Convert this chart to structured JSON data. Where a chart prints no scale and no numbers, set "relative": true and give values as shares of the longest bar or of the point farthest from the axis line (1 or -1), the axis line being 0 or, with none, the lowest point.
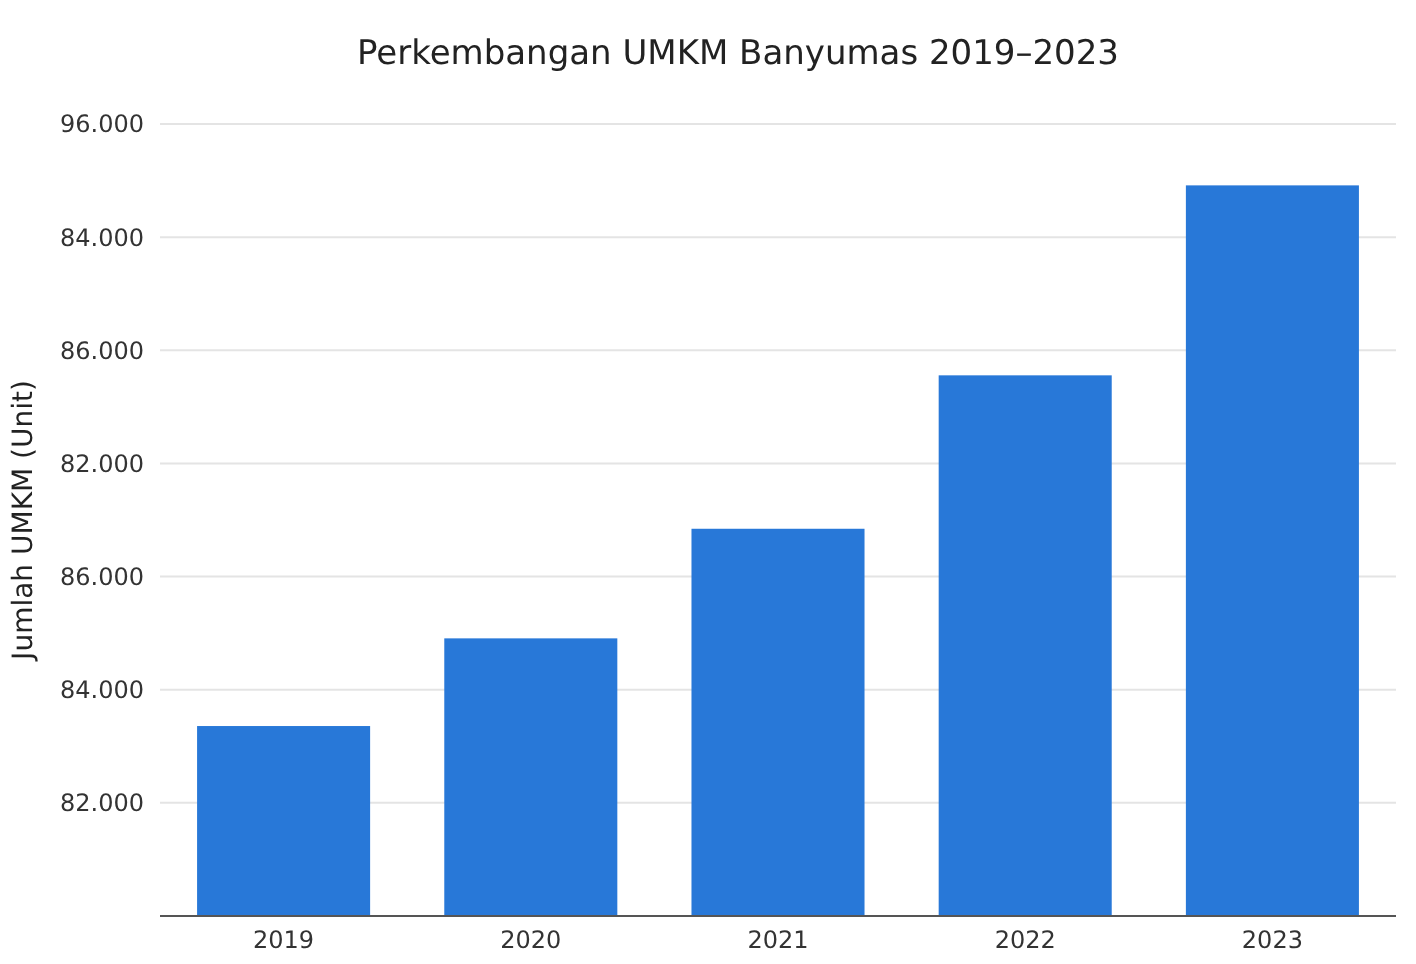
{
  "chart_data": {
    "type": "bar",
    "title": "Perkembangan UMKM Banyumas 2019–2023",
    "ylabel": "Jumlah UMKM (Unit)",
    "categories": [
      "2019",
      "2020",
      "2021",
      "2022",
      "2023"
    ],
    "values": [
      0.26,
      0.38,
      0.53,
      0.74,
      1
    ],
    "color": "#2878d8",
    "relative": true,
    "annotations": [
      "96.000",
      "84.000",
      "86.000",
      "82.000",
      "86.000",
      "84.000",
      "82.000"
    ],
    "grid": "y"
  }
}
